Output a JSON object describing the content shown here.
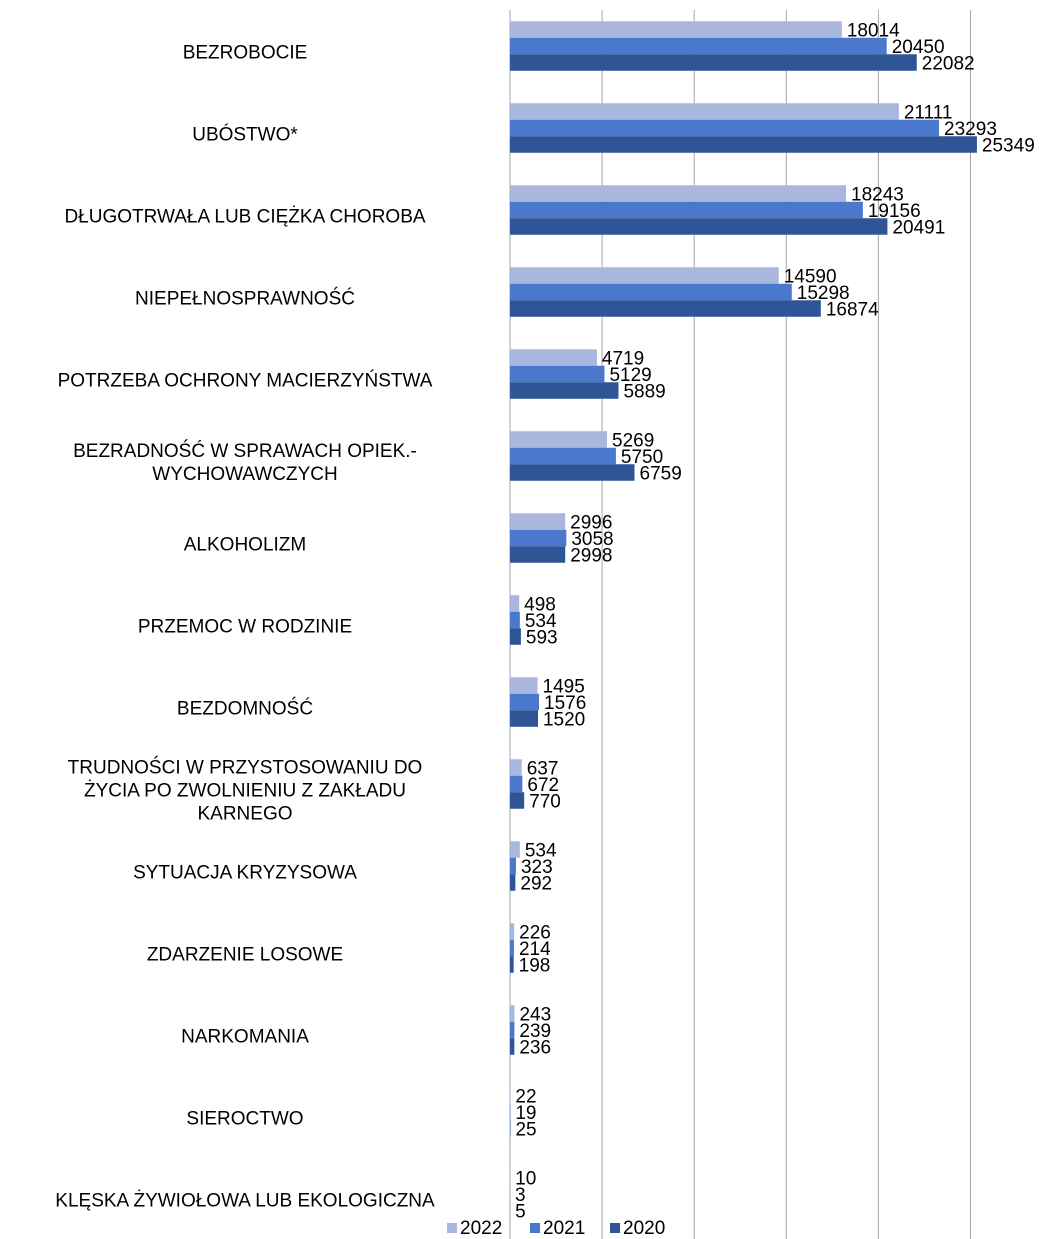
{
  "chart_data": {
    "type": "bar",
    "orientation": "horizontal",
    "categories": [
      "BEZROBOCIE",
      "UBÓSTWO*",
      "DŁUGOTRWAŁA LUB CIĘŻKA CHOROBA",
      "NIEPEŁNOSPRAWNOŚĆ",
      "POTRZEBA OCHRONY MACIERZYŃSTWA",
      "BEZRADNOŚĆ W SPRAWACH OPIEK.-\nWYCHOWAWCZYCH",
      "ALKOHOLIZM",
      "PRZEMOC W RODZINIE",
      "BEZDOMNOŚĆ",
      "TRUDNOŚCI W PRZYSTOSOWANIU DO\nŻYCIA PO ZWOLNIENIU Z ZAKŁADU\nKARNEGO",
      "SYTUACJA KRYZYSOWA",
      "ZDARZENIE LOSOWE",
      "NARKOMANIA",
      "SIEROCTWO",
      "KLĘSKA ŻYWIOŁOWA LUB EKOLOGICZNA"
    ],
    "series": [
      {
        "name": "2022",
        "color": "#a9b7de",
        "values": [
          18014,
          21111,
          18243,
          14590,
          4719,
          5269,
          2996,
          498,
          1495,
          637,
          534,
          226,
          243,
          22,
          10
        ]
      },
      {
        "name": "2021",
        "color": "#4a78cc",
        "values": [
          20450,
          23293,
          19156,
          15298,
          5129,
          5750,
          3058,
          534,
          1576,
          672,
          323,
          214,
          239,
          19,
          3
        ]
      },
      {
        "name": "2020",
        "color": "#2f5597",
        "values": [
          22082,
          25349,
          20491,
          16874,
          5889,
          6759,
          2998,
          593,
          1520,
          770,
          292,
          198,
          236,
          25,
          5
        ]
      }
    ],
    "xlim": [
      0,
      30000
    ],
    "xticks": [
      0,
      5000,
      10000,
      15000,
      20000,
      25000
    ],
    "grid": true,
    "legend": "bottom"
  }
}
